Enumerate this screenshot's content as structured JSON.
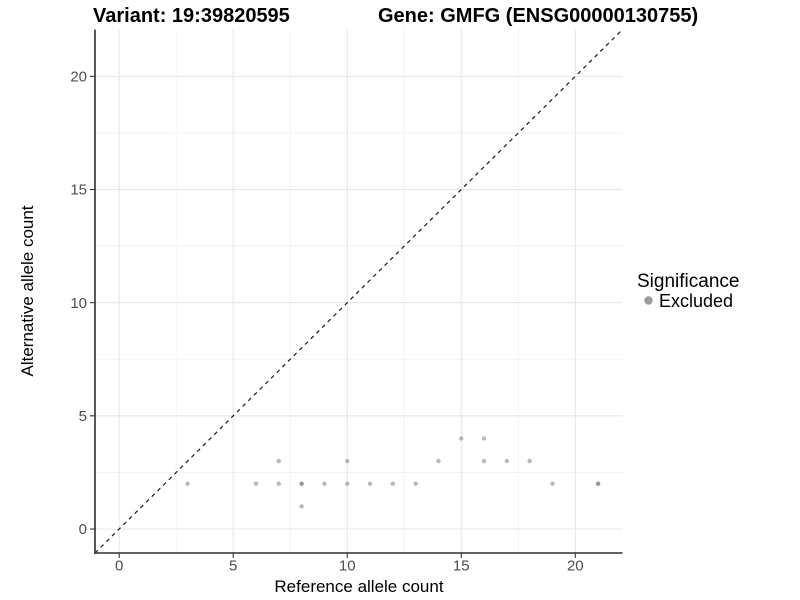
{
  "title": {
    "variant": "Variant: 19:39820595",
    "gene": "Gene: GMFG (ENSG00000130755)"
  },
  "legend": {
    "title": "Significance",
    "position": "right",
    "items": [
      {
        "label": "Excluded",
        "color": "#9b9b9b"
      }
    ]
  },
  "colors": {
    "background": "#ffffff",
    "axis_line": "#2f2f2f",
    "tick_mark": "#333333",
    "tick_label": "#4d4d4d",
    "grid_major": "#e7e7e7",
    "grid_minor": "#f3f3f3",
    "identity_line": "#1a1a1a",
    "point_fill": "#7a7a7a"
  },
  "chart_data": {
    "type": "scatter",
    "title_left": "Variant: 19:39820595",
    "title_right": "Gene: GMFG (ENSG00000130755)",
    "xlabel": "Reference allele count",
    "ylabel": "Alternative allele count",
    "xlim": [
      -1.06,
      22.07
    ],
    "ylim": [
      -1.06,
      22.07
    ],
    "x_ticks": [
      0,
      5,
      10,
      15,
      20
    ],
    "y_ticks": [
      0,
      5,
      10,
      15,
      20
    ],
    "x_minor": [
      2.5,
      7.5,
      12.5,
      17.5
    ],
    "y_minor": [
      2.5,
      7.5,
      12.5,
      17.5
    ],
    "grid": true,
    "legend_position": "right",
    "identity_line": {
      "type": "abline",
      "intercept": 0,
      "slope": 1,
      "style": "dashed"
    },
    "point_opacity": 0.53,
    "point_radius": 2.2,
    "series": [
      {
        "name": "Excluded",
        "color": "#7a7a7a",
        "points": [
          [
            3,
            2
          ],
          [
            6,
            2
          ],
          [
            7,
            2
          ],
          [
            7,
            3
          ],
          [
            8,
            1
          ],
          [
            8,
            2
          ],
          [
            8,
            2
          ],
          [
            9,
            2
          ],
          [
            10,
            2
          ],
          [
            10,
            3
          ],
          [
            11,
            2
          ],
          [
            12,
            2
          ],
          [
            13,
            2
          ],
          [
            14,
            3
          ],
          [
            15,
            4
          ],
          [
            16,
            3
          ],
          [
            16,
            4
          ],
          [
            17,
            3
          ],
          [
            18,
            3
          ],
          [
            19,
            2
          ],
          [
            21,
            2
          ],
          [
            21,
            2
          ]
        ]
      }
    ]
  }
}
